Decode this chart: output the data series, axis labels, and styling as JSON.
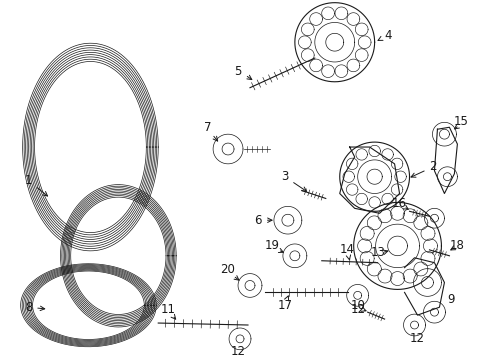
{
  "bg_color": "#ffffff",
  "line_color": "#1a1a1a",
  "label_fontsize": 8.5,
  "figsize": [
    4.89,
    3.6
  ],
  "dpi": 100
}
